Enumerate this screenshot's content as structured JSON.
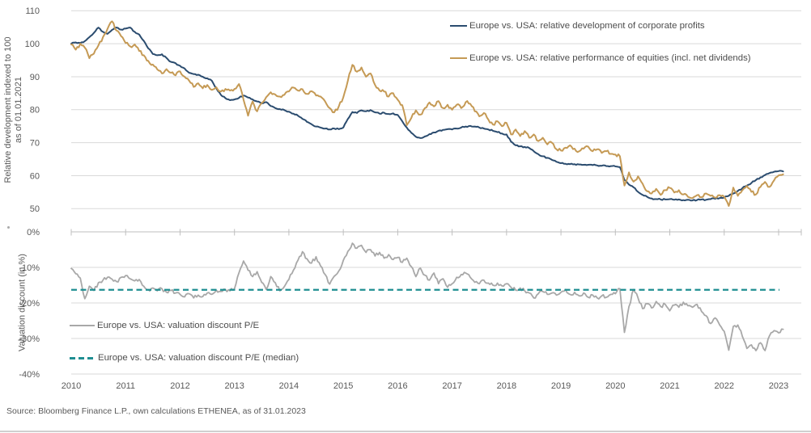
{
  "page": {
    "source_note": "Source: Bloomberg Finance L.P., own calculations ETHENEA, as of 31.01.2023"
  },
  "colors": {
    "profits_line": "#2b4c6f",
    "equities_line": "#c59a55",
    "discount_line": "#a8a8a8",
    "median_line": "#1f8e91",
    "gridline": "#d9d9d9",
    "axis_line": "#bfbfbf",
    "text": "#595959"
  },
  "x_axis": {
    "tick_labels": [
      "2010",
      "2011",
      "2012",
      "2013",
      "2014",
      "2015",
      "2016",
      "2017",
      "2018",
      "2019",
      "2020",
      "2021",
      "2022",
      "2023"
    ]
  },
  "chart_data": [
    {
      "id": "relative-development-panel",
      "type": "line",
      "title": "",
      "ylabel": "Relative development indexed to 100 as of 01.01.2021",
      "ylabel_lines": [
        "Relative development indexed to 100",
        "as of 01.01.2021"
      ],
      "ylim": [
        50,
        110
      ],
      "ytick_values": [
        110,
        100,
        90,
        80,
        70,
        60,
        50
      ],
      "ytick_labels": [
        "110",
        "100",
        "90",
        "80",
        "70",
        "60",
        "50"
      ],
      "x_start_year": 2010,
      "points_per_year": 12,
      "x_range": [
        2010.0,
        2023.08
      ],
      "grid": true,
      "legend_position": "top-right",
      "series": [
        {
          "name": "Europe vs. USA: relative development of corporate profits",
          "color": "#2b4c6f",
          "style": "solid",
          "values": [
            100,
            100.4,
            100.2,
            100.8,
            102,
            103.3,
            104.9,
            103.6,
            103,
            104.2,
            104.9,
            104.3,
            104.6,
            104.9,
            103.6,
            102.8,
            100.9,
            98.6,
            96.9,
            96.5,
            96.8,
            95.7,
            94.5,
            94.1,
            93.3,
            92.5,
            91.2,
            90.8,
            90.6,
            90,
            89.5,
            88.8,
            86.5,
            84.5,
            83.5,
            82.9,
            83.1,
            83.6,
            84.3,
            83.7,
            83.1,
            82.5,
            81.9,
            82.3,
            81.1,
            80.5,
            80.2,
            79.9,
            79.4,
            78.8,
            78.2,
            77.2,
            76.3,
            75.6,
            74.9,
            74.6,
            74.3,
            74,
            74.3,
            74.1,
            74.6,
            77.2,
            79.3,
            79,
            79.8,
            79.5,
            79.9,
            79.2,
            78.8,
            79.1,
            78.7,
            78.9,
            78.4,
            76.5,
            74.6,
            73,
            71.8,
            71.4,
            71.9,
            72.6,
            73.1,
            73.6,
            73.9,
            74.1,
            74,
            74.3,
            74.6,
            74.9,
            75.1,
            74.9,
            74.6,
            74.3,
            74,
            73.6,
            73.2,
            72.8,
            72.5,
            70.3,
            69.2,
            68.9,
            68.7,
            68.4,
            67.4,
            66.5,
            65.9,
            65.4,
            64.8,
            64.2,
            63.8,
            63.6,
            63.5,
            63.5,
            63.4,
            63.3,
            63.3,
            63.2,
            63.1,
            63,
            62.9,
            62.9,
            62.8,
            62.6,
            58.7,
            57.3,
            56.5,
            55.1,
            54.2,
            53.6,
            53.1,
            52.9,
            52.8,
            52.8,
            52.9,
            52.7,
            52.8,
            52.6,
            52.7,
            52.5,
            52.6,
            52.8,
            52.7,
            52.9,
            53,
            53.2,
            53.4,
            53.9,
            54.6,
            55.4,
            56.2,
            57,
            57.8,
            58.7,
            59.5,
            60.2,
            60.8,
            61.2,
            61.4,
            61.3
          ]
        },
        {
          "name": "Europe vs. USA: relative performance of equities (incl. net dividends)",
          "color": "#c59a55",
          "style": "solid",
          "values": [
            99.8,
            98.2,
            100,
            98.8,
            95.6,
            97,
            99.5,
            102,
            104.5,
            106.8,
            104,
            102.3,
            100.2,
            99.2,
            99.8,
            97.8,
            96.5,
            94.8,
            93.7,
            92.2,
            91,
            92.3,
            91.2,
            90.4,
            91.6,
            90,
            88.8,
            86.9,
            88,
            86.5,
            87.5,
            86,
            86.8,
            85.5,
            86.3,
            85.8,
            86.3,
            87.8,
            83,
            78.2,
            82.5,
            79.5,
            82,
            83.8,
            85.3,
            84.6,
            84,
            84.5,
            85.5,
            86.7,
            85.8,
            86.2,
            84.8,
            85.6,
            84.3,
            84,
            82.5,
            80.5,
            79.2,
            81,
            83.8,
            88.8,
            93.6,
            91.5,
            92.8,
            90,
            91,
            87.5,
            85.8,
            85.5,
            84,
            85,
            83,
            81.4,
            75.3,
            77.5,
            79.8,
            78.5,
            80.5,
            82.2,
            81,
            82.6,
            80.5,
            81.5,
            80,
            81.5,
            80.5,
            82.3,
            81.8,
            79.5,
            78,
            79,
            77,
            75.5,
            76.5,
            75,
            76,
            72.5,
            74,
            72,
            73.5,
            71.5,
            72.5,
            70.5,
            71.5,
            69.5,
            70,
            68,
            67.6,
            68.5,
            69.2,
            68.2,
            67.4,
            68.2,
            68.8,
            67.4,
            68,
            66.9,
            67.4,
            66.6,
            66.4,
            65.9,
            57,
            61,
            58.2,
            59.8,
            57.6,
            55.3,
            54.6,
            56,
            54.2,
            55.6,
            56.3,
            54.9,
            55.6,
            54.3,
            53.6,
            53.2,
            54.1,
            53.5,
            54.6,
            53.9,
            53.3,
            54.1,
            53.6,
            50.8,
            56.4,
            53.9,
            55.6,
            56.9,
            55.1,
            54.3,
            56.6,
            58.1,
            56.6,
            58.6,
            60.1,
            60.4
          ]
        }
      ]
    },
    {
      "id": "valuation-discount-panel",
      "type": "line",
      "title": "",
      "ylabel": "Valuation discount (in %)",
      "ylim": [
        -40,
        0
      ],
      "ytick_values": [
        0,
        -10,
        -20,
        -30,
        -40
      ],
      "ytick_labels": [
        "0%",
        "-10%",
        "-20%",
        "-30%",
        "-40%"
      ],
      "x_start_year": 2010,
      "points_per_year": 12,
      "x_range": [
        2010.0,
        2023.08
      ],
      "grid": true,
      "legend_position": "bottom-left",
      "series": [
        {
          "name": "Europe vs. USA: valuation discount P/E",
          "color": "#a8a8a8",
          "style": "solid",
          "values": [
            -10.3,
            -11.8,
            -13,
            -18.8,
            -15.3,
            -16.5,
            -14.3,
            -13.6,
            -12.8,
            -13.3,
            -14,
            -12.8,
            -12.3,
            -13.2,
            -13.8,
            -13.4,
            -15.3,
            -16.3,
            -15.8,
            -16.6,
            -16,
            -17,
            -16.5,
            -17.2,
            -17.6,
            -18.3,
            -17.4,
            -18.6,
            -17.8,
            -18.2,
            -17.2,
            -17.6,
            -16.4,
            -16.8,
            -16.2,
            -16.6,
            -16,
            -11.5,
            -8.2,
            -10.8,
            -12.6,
            -11.2,
            -14.2,
            -16.2,
            -12.6,
            -14.3,
            -16.6,
            -15.4,
            -13.4,
            -10.8,
            -8,
            -5.6,
            -7.6,
            -8.8,
            -7,
            -9.6,
            -12,
            -14.7,
            -12.5,
            -11,
            -8,
            -5.5,
            -3.2,
            -4.6,
            -3.8,
            -5.8,
            -5,
            -6.8,
            -5.8,
            -7.4,
            -6.4,
            -7.8,
            -7.2,
            -8.6,
            -7.4,
            -9.8,
            -12.6,
            -10.2,
            -12.2,
            -13.6,
            -11.6,
            -14.6,
            -13.2,
            -15.6,
            -14.6,
            -12.8,
            -12,
            -11.6,
            -12.8,
            -14.2,
            -14.6,
            -13.6,
            -14.4,
            -15,
            -14.4,
            -15.2,
            -14.6,
            -15.6,
            -16.4,
            -15.8,
            -16.6,
            -17.2,
            -18.6,
            -17.4,
            -16.8,
            -17.6,
            -17.2,
            -17.8,
            -17,
            -16.2,
            -17.6,
            -17,
            -18,
            -17.2,
            -18.4,
            -17.8,
            -18.6,
            -18,
            -18.4,
            -17.6,
            -17.4,
            -16,
            -28.3,
            -21,
            -16.2,
            -18.6,
            -21.6,
            -20.2,
            -21.4,
            -19.6,
            -21,
            -20.4,
            -22.2,
            -20.6,
            -21.2,
            -19.8,
            -20.8,
            -21.2,
            -20.4,
            -22.4,
            -23.6,
            -25.8,
            -24.2,
            -26.2,
            -28,
            -33.3,
            -26.6,
            -26.2,
            -29.4,
            -32.8,
            -31.8,
            -33.4,
            -31.2,
            -33.4,
            -29.2,
            -27.8,
            -28.4,
            -27.4
          ]
        },
        {
          "name": "Europe vs. USA: valuation discount P/E (median)",
          "color": "#1f8e91",
          "style": "dashed",
          "constant_value": -16.3
        }
      ]
    }
  ]
}
